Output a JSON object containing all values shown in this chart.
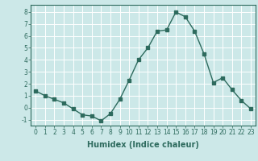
{
  "x": [
    0,
    1,
    2,
    3,
    4,
    5,
    6,
    7,
    8,
    9,
    10,
    11,
    12,
    13,
    14,
    15,
    16,
    17,
    18,
    19,
    20,
    21,
    22,
    23
  ],
  "y": [
    1.4,
    1.0,
    0.7,
    0.4,
    -0.1,
    -0.6,
    -0.7,
    -1.1,
    -0.5,
    0.7,
    2.3,
    4.0,
    5.0,
    6.4,
    6.5,
    8.0,
    7.6,
    6.4,
    4.5,
    2.1,
    2.5,
    1.5,
    0.6,
    -0.1
  ],
  "line_color": "#2e6b5e",
  "marker": "s",
  "marker_size": 2.5,
  "bg_color": "#cce8e8",
  "grid_color": "#ffffff",
  "xlabel": "Humidex (Indice chaleur)",
  "xlabel_fontsize": 7,
  "ylabel_ticks": [
    -1,
    0,
    1,
    2,
    3,
    4,
    5,
    6,
    7,
    8
  ],
  "xtick_labels": [
    "0",
    "1",
    "2",
    "3",
    "4",
    "5",
    "6",
    "7",
    "8",
    "9",
    "10",
    "11",
    "12",
    "13",
    "14",
    "15",
    "16",
    "17",
    "18",
    "19",
    "20",
    "21",
    "22",
    "23"
  ],
  "ylim": [
    -1.5,
    8.6
  ],
  "xlim": [
    -0.5,
    23.5
  ],
  "tick_fontsize": 5.5,
  "line_width": 1.0
}
